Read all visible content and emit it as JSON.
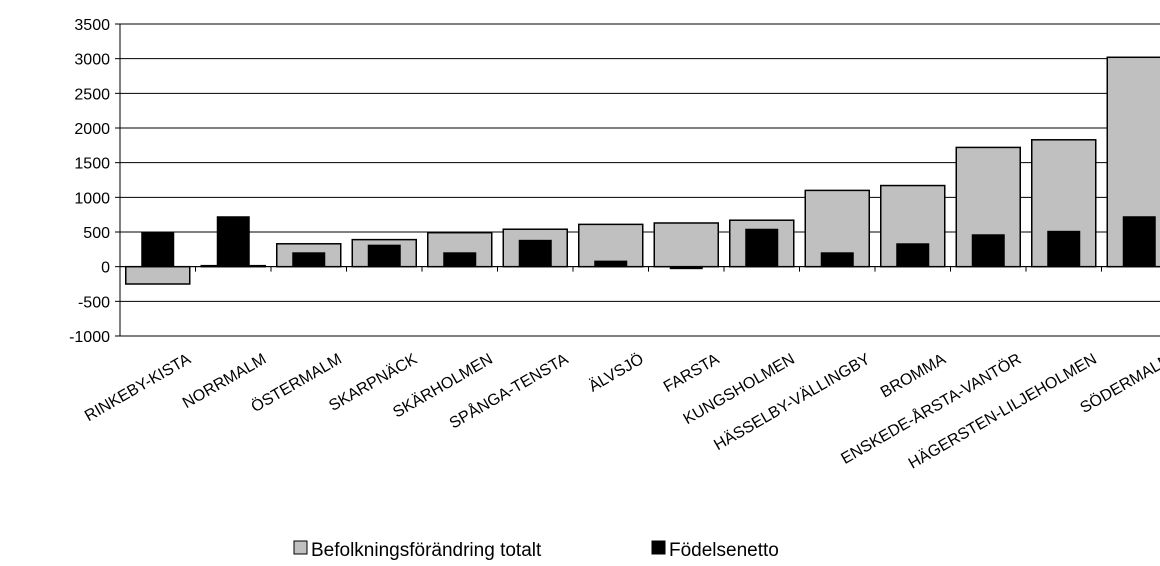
{
  "chart_data": {
    "type": "bar",
    "title": "",
    "xlabel": "",
    "ylabel": "",
    "ylim": [
      -1000,
      3500
    ],
    "yticks": [
      3500,
      3000,
      2500,
      2000,
      1500,
      1000,
      500,
      0,
      -500,
      -1000
    ],
    "grid": true,
    "legend_position": "bottom",
    "categories": [
      "RINKEBY-KISTA",
      "NORRMALM",
      "ÖSTERMALM",
      "SKARPNÄCK",
      "SKÄRHOLMEN",
      "SPÅNGA-TENSTA",
      "ÄLVSJÖ",
      "FARSTA",
      "KUNGSHOLMEN",
      "HÄSSELBY-VÄLLINGBY",
      "BROMMA",
      "ENSKEDE-ÅRSTA-VANTÖR",
      "HÄGERSTEN-LILJEHOLMEN",
      "SÖDERMALM"
    ],
    "series": [
      {
        "name": "Befolkningsförändring totalt",
        "color": "#c0c0c0",
        "values": [
          -250,
          10,
          330,
          390,
          490,
          540,
          610,
          630,
          670,
          1100,
          1170,
          1720,
          1830,
          3020
        ]
      },
      {
        "name": "Födelsenetto",
        "color": "#000000",
        "values": [
          500,
          720,
          200,
          310,
          200,
          380,
          80,
          -20,
          540,
          200,
          330,
          460,
          510,
          720
        ]
      }
    ]
  }
}
